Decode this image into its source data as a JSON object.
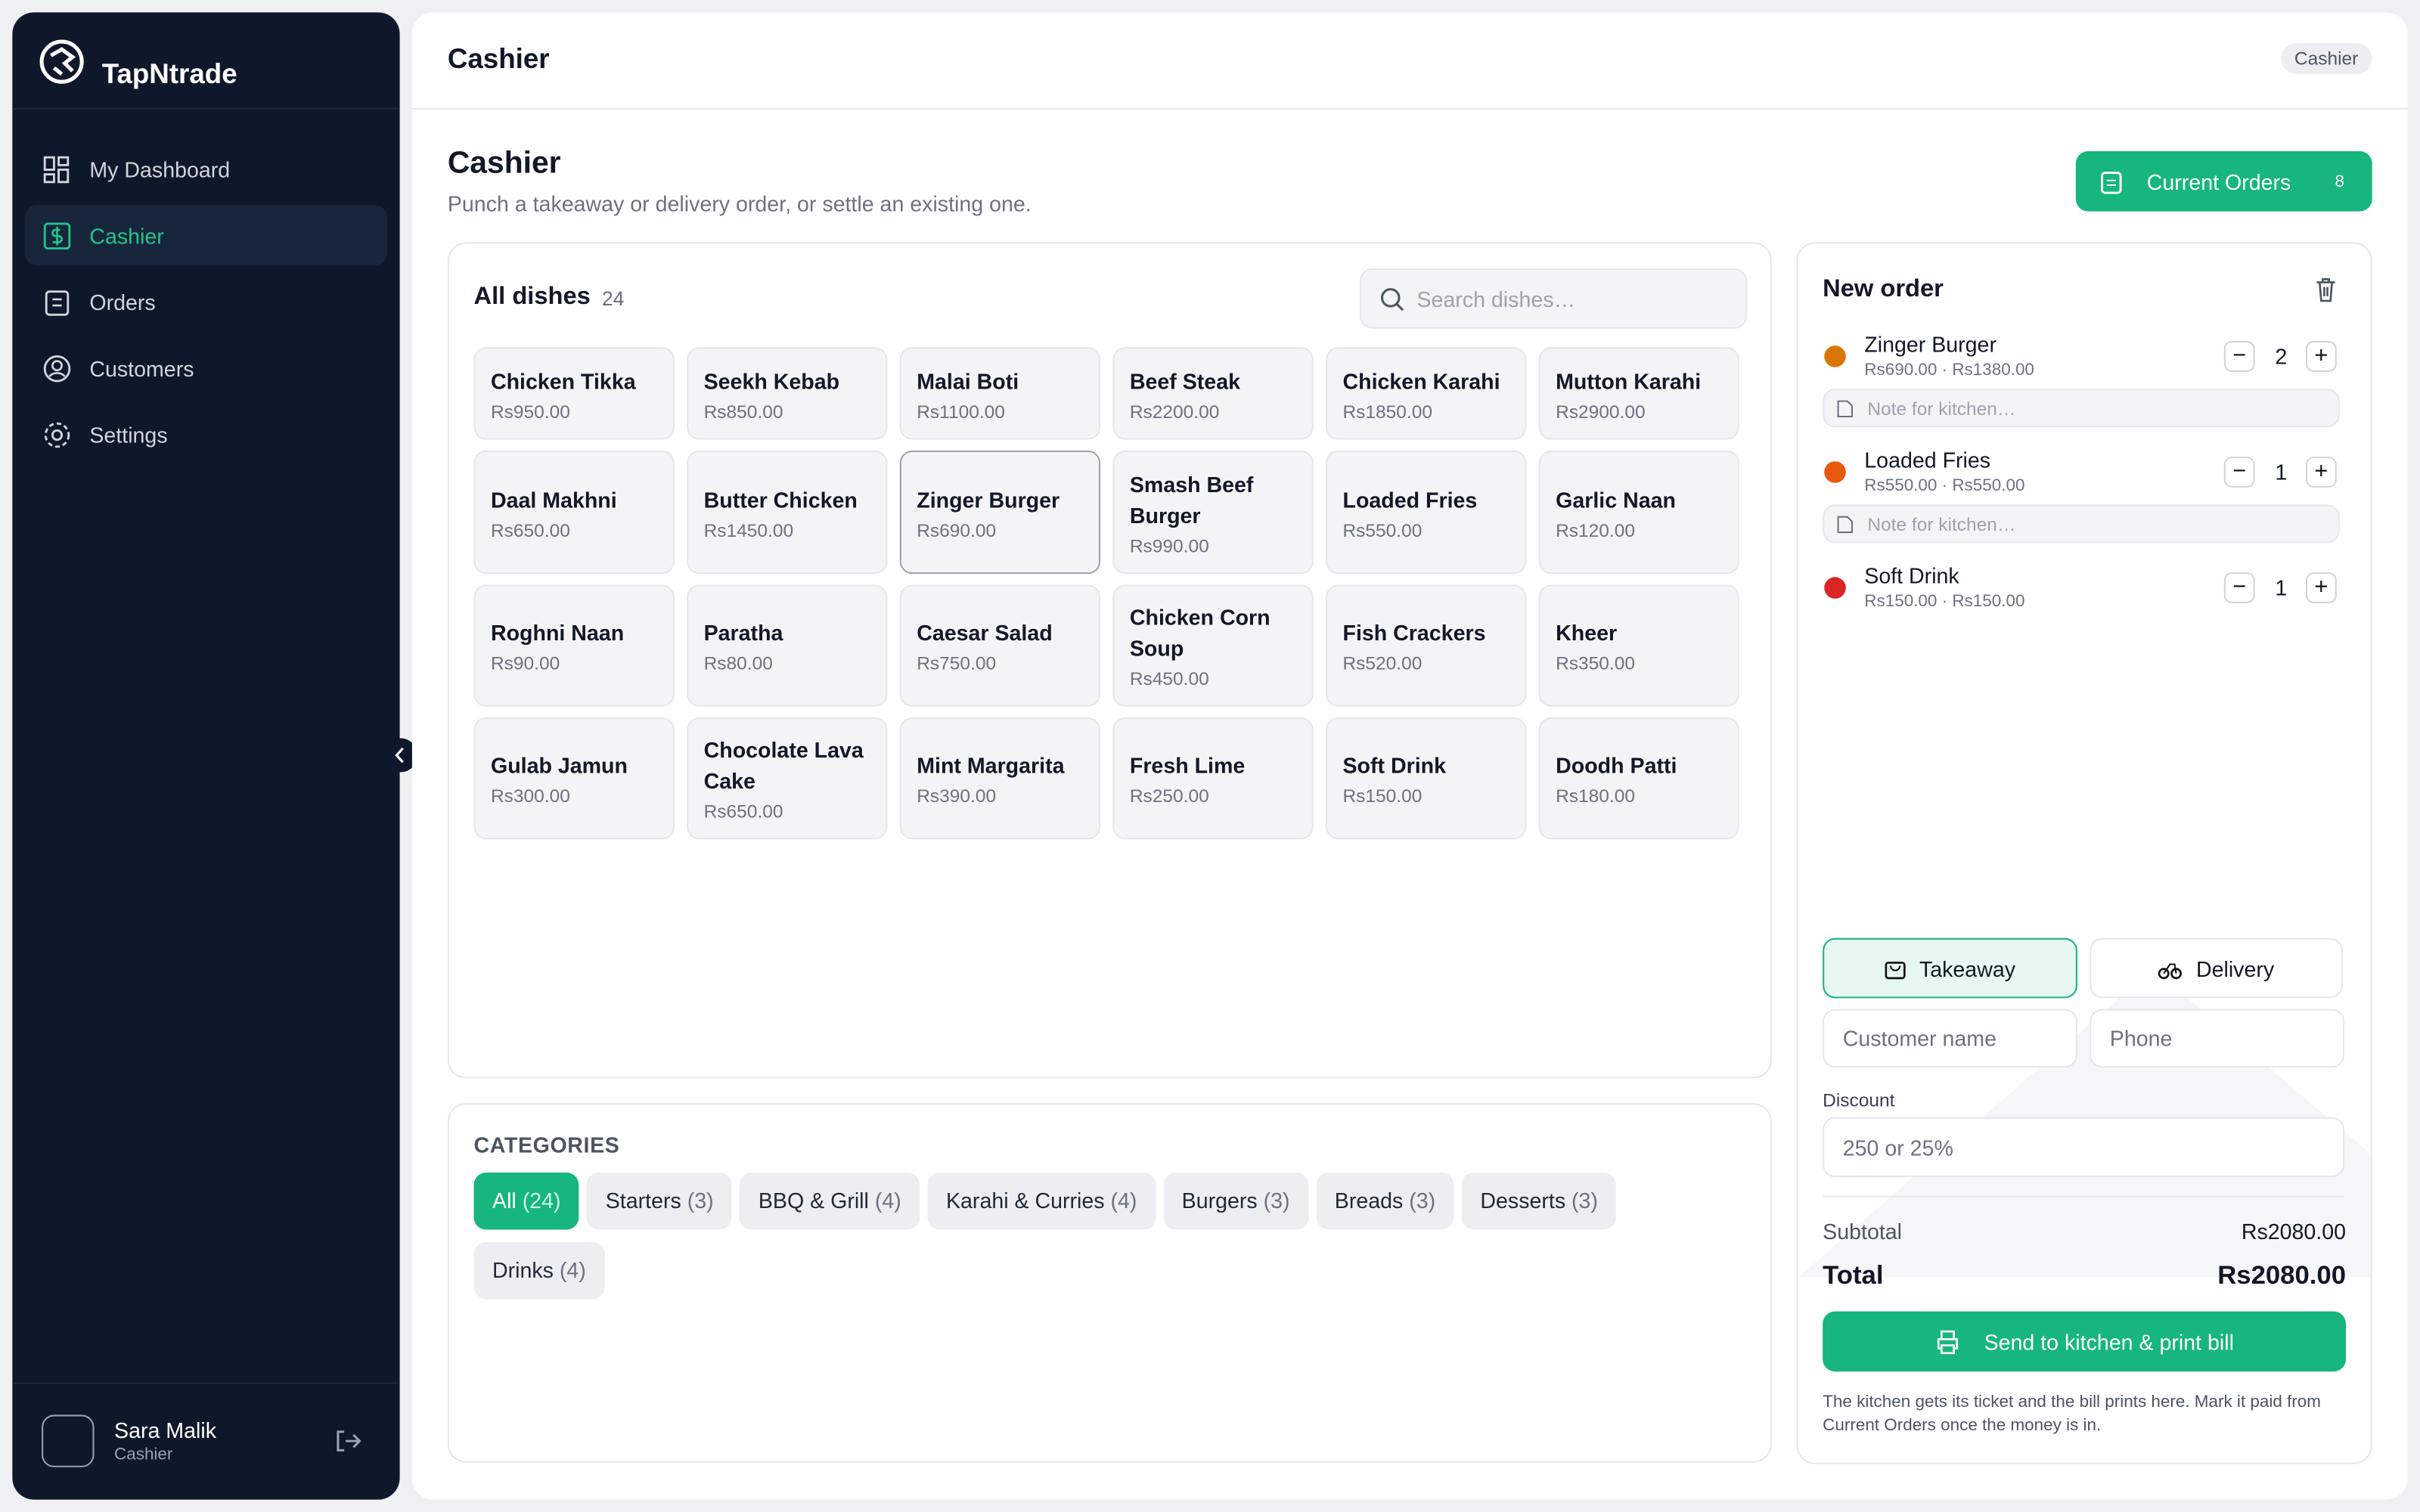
{
  "sidebar": {
    "brand": "TapNtrade",
    "nav": [
      "My Dashboard",
      "Cashier",
      "Orders",
      "Customers",
      "Settings"
    ],
    "active_nav": 1,
    "user": {
      "name": "Sara Malik",
      "role": "Cashier"
    }
  },
  "header": {
    "title": "Cashier",
    "badge": "Cashier"
  },
  "page": {
    "title": "Cashier",
    "subtitle": "Punch a takeaway or delivery order, or settle an existing one.",
    "current_orders": {
      "label": "Current Orders",
      "count": 8
    }
  },
  "dishes": {
    "title": "All dishes",
    "count": 24,
    "search_placeholder": "Search dishes…",
    "items": [
      {
        "name": "Chicken Tikka",
        "price": "Rs950.00"
      },
      {
        "name": "Seekh Kebab",
        "price": "Rs850.00"
      },
      {
        "name": "Malai Boti",
        "price": "Rs1100.00"
      },
      {
        "name": "Beef Steak",
        "price": "Rs2200.00"
      },
      {
        "name": "Chicken Karahi",
        "price": "Rs1850.00"
      },
      {
        "name": "Mutton Karahi",
        "price": "Rs2900.00"
      },
      {
        "name": "Daal Makhni",
        "price": "Rs650.00"
      },
      {
        "name": "Butter Chicken",
        "price": "Rs1450.00"
      },
      {
        "name": "Zinger Burger",
        "price": "Rs690.00",
        "selected": true
      },
      {
        "name": "Smash Beef Burger",
        "price": "Rs990.00"
      },
      {
        "name": "Loaded Fries",
        "price": "Rs550.00"
      },
      {
        "name": "Garlic Naan",
        "price": "Rs120.00"
      },
      {
        "name": "Roghni Naan",
        "price": "Rs90.00"
      },
      {
        "name": "Paratha",
        "price": "Rs80.00"
      },
      {
        "name": "Caesar Salad",
        "price": "Rs750.00"
      },
      {
        "name": "Chicken Corn Soup",
        "price": "Rs450.00"
      },
      {
        "name": "Fish Crackers",
        "price": "Rs520.00"
      },
      {
        "name": "Kheer",
        "price": "Rs350.00"
      },
      {
        "name": "Gulab Jamun",
        "price": "Rs300.00"
      },
      {
        "name": "Chocolate Lava Cake",
        "price": "Rs650.00"
      },
      {
        "name": "Mint Margarita",
        "price": "Rs390.00"
      },
      {
        "name": "Fresh Lime",
        "price": "Rs250.00"
      },
      {
        "name": "Soft Drink",
        "price": "Rs150.00"
      },
      {
        "name": "Doodh Patti",
        "price": "Rs180.00"
      }
    ]
  },
  "categories": {
    "title": "CATEGORIES",
    "active": 0,
    "items": [
      {
        "name": "All",
        "count": "(24)"
      },
      {
        "name": "Starters",
        "count": "(3)"
      },
      {
        "name": "BBQ & Grill",
        "count": "(4)"
      },
      {
        "name": "Karahi & Curries",
        "count": "(4)"
      },
      {
        "name": "Burgers",
        "count": "(3)"
      },
      {
        "name": "Breads",
        "count": "(3)"
      },
      {
        "name": "Desserts",
        "count": "(3)"
      },
      {
        "name": "Drinks",
        "count": "(4)"
      }
    ]
  },
  "order": {
    "title": "New order",
    "note_placeholder": "Note for kitchen…",
    "items": [
      {
        "name": "Zinger Burger",
        "prices": "Rs690.00 · Rs1380.00",
        "quantity": 2,
        "has_note": true
      },
      {
        "name": "Loaded Fries",
        "prices": "Rs550.00 · Rs550.00",
        "quantity": 1,
        "has_note": true
      },
      {
        "name": "Soft Drink",
        "prices": "Rs150.00 · Rs150.00",
        "quantity": 1,
        "has_note": false
      }
    ],
    "modes": [
      "Takeaway",
      "Delivery"
    ],
    "active_mode": 0,
    "customer_placeholder": "Customer name",
    "phone_placeholder": "Phone",
    "discount_label": "Discount",
    "discount_placeholder": "250 or 25%",
    "subtotal_label": "Subtotal",
    "subtotal": "Rs2080.00",
    "total_label": "Total",
    "total": "Rs2080.00",
    "submit": "Send to kitchen & print bill",
    "footnote": "The kitchen gets its ticket and the bill prints here. Mark it paid from Current Orders once the money is in."
  }
}
